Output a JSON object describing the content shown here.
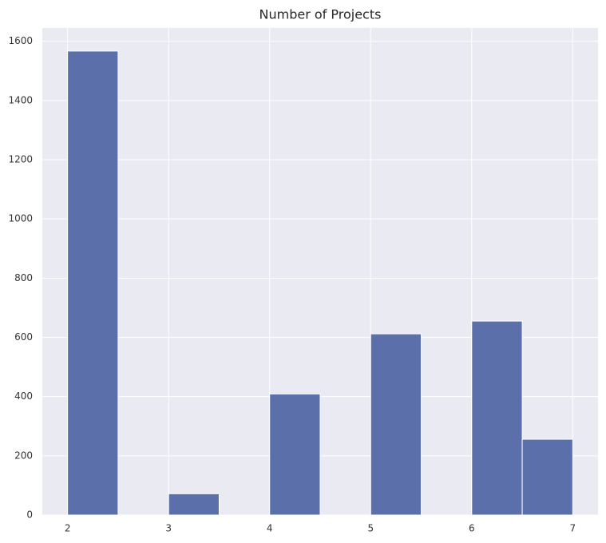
{
  "chart_data": {
    "type": "histogram",
    "title": "Number of Projects",
    "bins": [
      2,
      2.5,
      3,
      3.5,
      4,
      4.5,
      5,
      5.5,
      6,
      6.5,
      7
    ],
    "values": [
      1567,
      0,
      72,
      0,
      409,
      0,
      612,
      0,
      655,
      256
    ],
    "color": "#5b70aa",
    "xlim": [
      1.75,
      7.25
    ],
    "xticks": [
      2,
      3,
      4,
      5,
      6,
      7
    ],
    "ylim": [
      0,
      1645
    ],
    "yticks": [
      0,
      200,
      400,
      600,
      800,
      1000,
      1200,
      1400,
      1600
    ],
    "grid": true
  }
}
